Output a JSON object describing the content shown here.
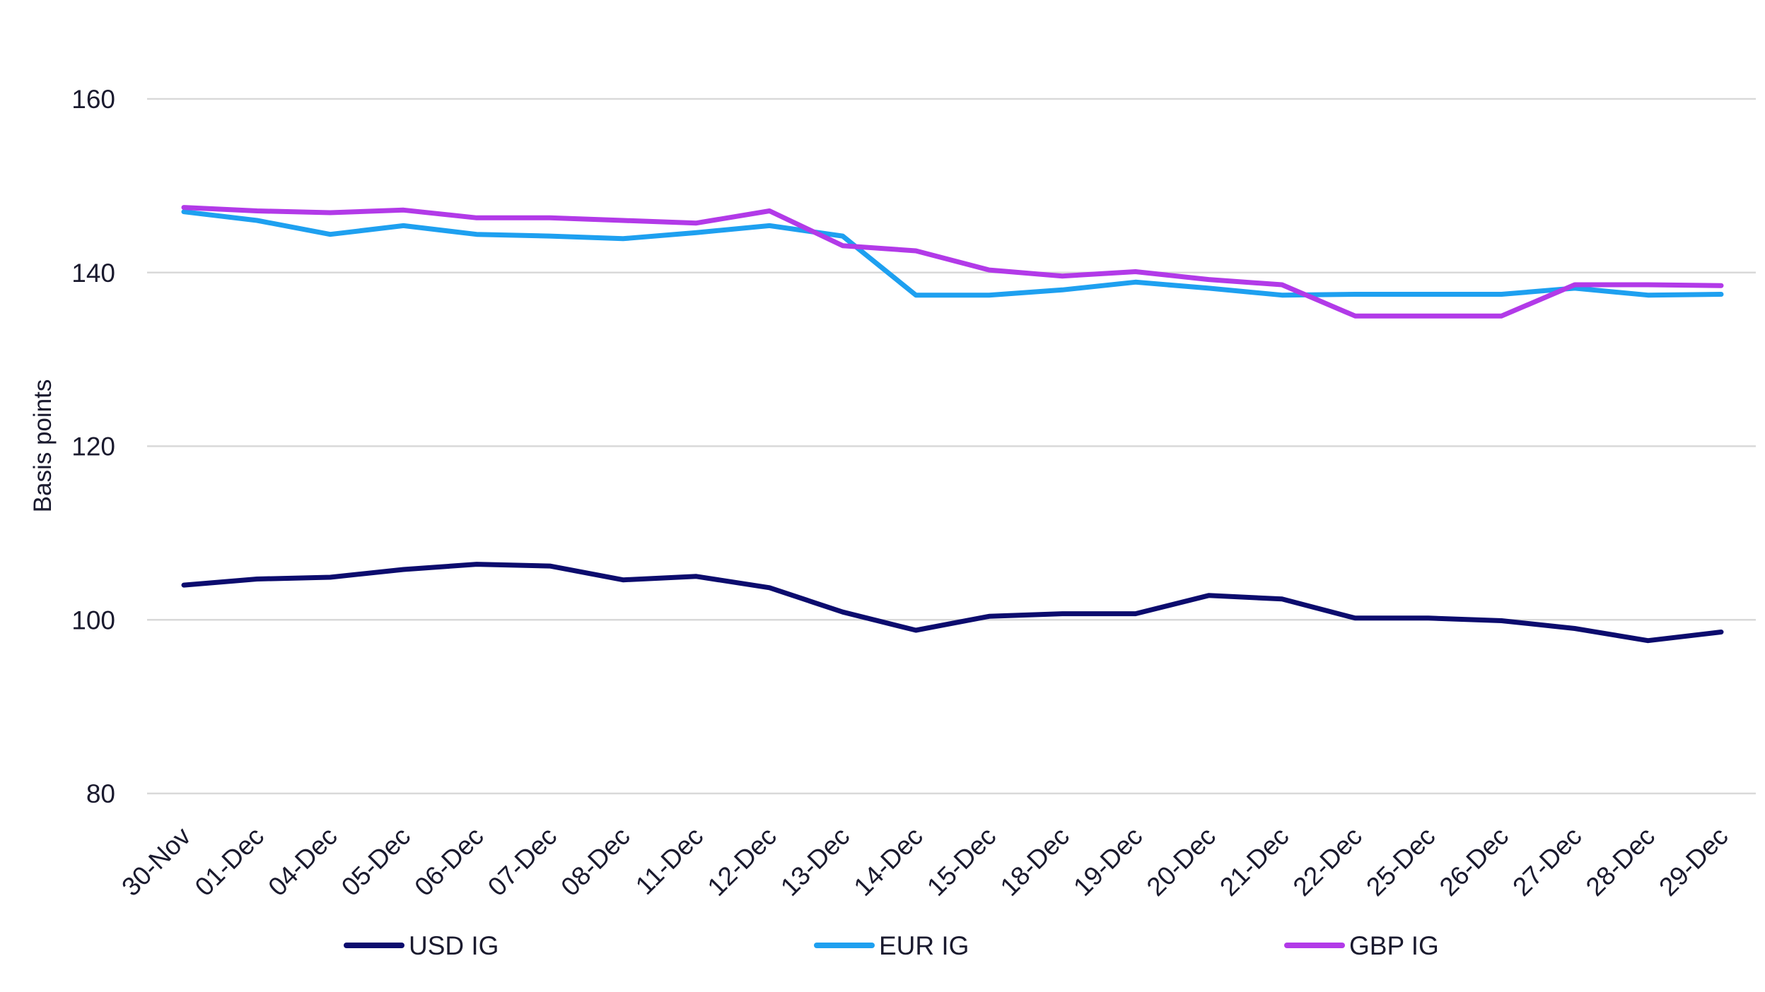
{
  "chart_data": {
    "type": "line",
    "title": "",
    "xlabel": "",
    "ylabel": "Basis points",
    "ylim": [
      80,
      160
    ],
    "yticks": [
      80,
      100,
      120,
      140,
      160
    ],
    "grid": true,
    "legend_position": "bottom",
    "categories": [
      "30-Nov",
      "01-Dec",
      "04-Dec",
      "05-Dec",
      "06-Dec",
      "07-Dec",
      "08-Dec",
      "11-Dec",
      "12-Dec",
      "13-Dec",
      "14-Dec",
      "15-Dec",
      "18-Dec",
      "19-Dec",
      "20-Dec",
      "21-Dec",
      "22-Dec",
      "25-Dec",
      "26-Dec",
      "27-Dec",
      "28-Dec",
      "29-Dec"
    ],
    "series": [
      {
        "name": "USD IG",
        "color": "#0c0c6e",
        "values": [
          104.0,
          104.7,
          104.9,
          105.8,
          106.4,
          106.2,
          104.6,
          105.0,
          103.7,
          100.9,
          98.8,
          100.4,
          100.7,
          100.7,
          102.8,
          102.4,
          100.2,
          100.2,
          99.9,
          99.0,
          97.6,
          98.6
        ]
      },
      {
        "name": "EUR IG",
        "color": "#1ea0f0",
        "values": [
          147.0,
          146.0,
          144.4,
          145.4,
          144.4,
          144.2,
          143.9,
          144.6,
          145.4,
          144.2,
          137.4,
          137.4,
          138.0,
          138.9,
          138.2,
          137.4,
          137.5,
          137.5,
          137.5,
          138.2,
          137.4,
          137.5
        ]
      },
      {
        "name": "GBP IG",
        "color": "#b23ae8",
        "values": [
          147.5,
          147.1,
          146.9,
          147.2,
          146.3,
          146.3,
          146.0,
          145.7,
          147.1,
          143.1,
          142.5,
          140.3,
          139.6,
          140.1,
          139.2,
          138.6,
          135.0,
          135.0,
          135.0,
          138.6,
          138.6,
          138.5
        ]
      }
    ]
  }
}
